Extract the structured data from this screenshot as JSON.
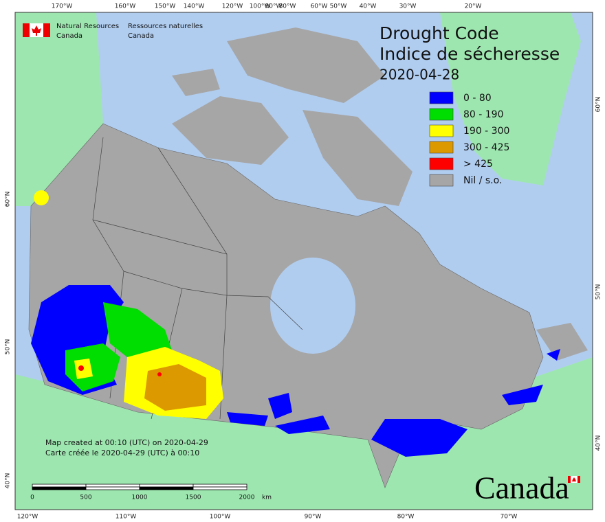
{
  "header": {
    "agency_en": [
      "Natural Resources",
      "Canada"
    ],
    "agency_fr": [
      "Ressources naturelles",
      "Canada"
    ]
  },
  "title": {
    "en": "Drought Code",
    "fr": "Indice de sécheresse",
    "date": "2020-04-28"
  },
  "legend": [
    {
      "label": "0 - 80",
      "color": "#0000ff"
    },
    {
      "label": "80 - 190",
      "color": "#00dd00"
    },
    {
      "label": "190 - 300",
      "color": "#ffff00"
    },
    {
      "label": "300 - 425",
      "color": "#dd9900"
    },
    {
      "label": "> 425",
      "color": "#ff0000"
    },
    {
      "label": "Nil / s.o.",
      "color": "#a6a6a6"
    }
  ],
  "credits": [
    "Map created at 00:10 (UTC) on 2020-04-29",
    "Carte créée le 2020-04-29 (UTC) à 00:10"
  ],
  "scale_bar": {
    "ticks": [
      0,
      500,
      1000,
      1500,
      2000
    ],
    "unit": "km"
  },
  "graticule": {
    "top": [
      "170°W",
      "160°W",
      "150°W",
      "140°W",
      "120°W",
      "100°W",
      "90°W",
      "80°W",
      "60°W",
      "50°W",
      "40°W",
      "30°W",
      "20°W"
    ],
    "bottom": [
      "120°W",
      "110°W",
      "100°W",
      "90°W",
      "80°W",
      "70°W"
    ],
    "left": [
      "60°N",
      "50°N",
      "40°N"
    ],
    "right": [
      "60°N",
      "50°N",
      "40°N"
    ]
  },
  "wordmark": "Canada"
}
